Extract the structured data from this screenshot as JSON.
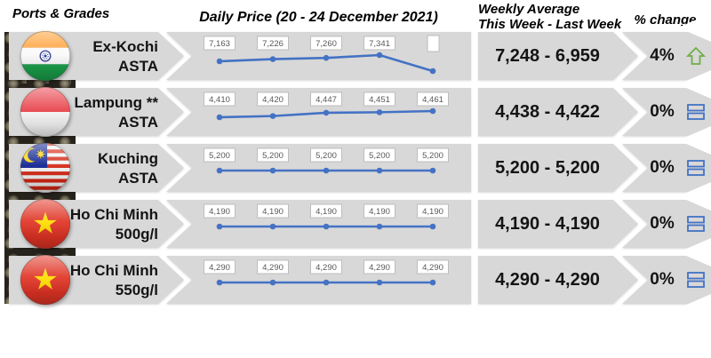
{
  "header": {
    "ports_grades": "Ports & Grades",
    "daily_price_title": "Daily Price (20 - 24 December 2021)",
    "weekly_avg_line1": "Weekly Average",
    "weekly_avg_line2": "This Week - Last Week",
    "pct_change": "% change"
  },
  "colors": {
    "row_background": "#d8d8d8",
    "chart_line": "#4472C4",
    "up_arrow_green": "#70AD47",
    "equals_blue": "#4472C4",
    "data_label_text": "#595959"
  },
  "chart_data": {
    "type": "line",
    "title": "Daily Price (20 - 24 December 2021)",
    "x_period": "20 - 24 December 2021",
    "x_count": 5,
    "grid": false,
    "legend": false,
    "line_color": "#4472C4",
    "series": [
      {
        "name": "Ex-Kochi ASTA",
        "values": [
          7163,
          7226,
          7260,
          7341,
          null
        ],
        "point_labels": [
          "7,163",
          "7,226",
          "7,260",
          "7,341",
          ""
        ]
      },
      {
        "name": "Lampung ** ASTA",
        "values": [
          4410,
          4420,
          4447,
          4451,
          4461
        ],
        "point_labels": [
          "4,410",
          "4,420",
          "4,447",
          "4,451",
          "4,461"
        ]
      },
      {
        "name": "Kuching ASTA",
        "values": [
          5200,
          5200,
          5200,
          5200,
          5200
        ],
        "point_labels": [
          "5,200",
          "5,200",
          "5,200",
          "5,200",
          "5,200"
        ]
      },
      {
        "name": "Ho Chi Minh 500g/l",
        "values": [
          4190,
          4190,
          4190,
          4190,
          4190
        ],
        "point_labels": [
          "4,190",
          "4,190",
          "4,190",
          "4,190",
          "4,190"
        ]
      },
      {
        "name": "Ho Chi Minh 550g/l",
        "values": [
          4290,
          4290,
          4290,
          4290,
          4290
        ],
        "point_labels": [
          "4,290",
          "4,290",
          "4,290",
          "4,290",
          "4,290"
        ]
      }
    ]
  },
  "rows": [
    {
      "flag": "india-flag-icon",
      "port": "Ex-Kochi",
      "grade": "ASTA",
      "weekly": "7,248 - 6,959",
      "pct": "4%",
      "trend": "up"
    },
    {
      "flag": "indonesia-flag-icon",
      "port": "Lampung **",
      "grade": "ASTA",
      "weekly": "4,438 - 4,422",
      "pct": "0%",
      "trend": "equal"
    },
    {
      "flag": "malaysia-flag-icon",
      "port": "Kuching",
      "grade": "ASTA",
      "weekly": "5,200 - 5,200",
      "pct": "0%",
      "trend": "equal"
    },
    {
      "flag": "vietnam-flag-icon",
      "port": "Ho Chi Minh",
      "grade": "500g/l",
      "weekly": "4,190 - 4,190",
      "pct": "0%",
      "trend": "equal"
    },
    {
      "flag": "vietnam-flag-icon",
      "port": "Ho Chi Minh",
      "grade": "550g/l",
      "weekly": "4,290 - 4,290",
      "pct": "0%",
      "trend": "equal"
    }
  ]
}
